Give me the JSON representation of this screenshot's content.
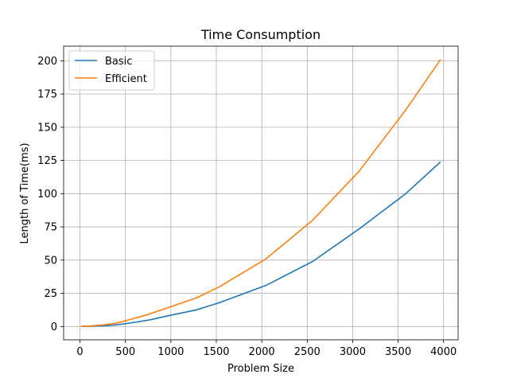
{
  "chart_data": {
    "type": "line",
    "title": "Time Consumption",
    "xlabel": "Problem Size",
    "ylabel": "Length of Time(ms)",
    "xlim": [
      -180,
      4160
    ],
    "ylim": [
      -10,
      211
    ],
    "xticks": [
      0,
      500,
      1000,
      1500,
      2000,
      2500,
      3000,
      3500,
      4000
    ],
    "yticks": [
      0,
      25,
      50,
      75,
      100,
      125,
      150,
      175,
      200
    ],
    "grid": true,
    "legend_position": "top-left",
    "series": [
      {
        "name": "Basic",
        "color": "#1f77b4",
        "x": [
          16,
          64,
          128,
          256,
          384,
          512,
          768,
          1024,
          1280,
          1536,
          2048,
          2560,
          3072,
          3584,
          3968
        ],
        "y": [
          0.1,
          0.2,
          0.3,
          0.6,
          1.2,
          2.2,
          5.0,
          8.9,
          12.5,
          18.0,
          31.0,
          49.0,
          73.5,
          100.0,
          124.0
        ]
      },
      {
        "name": "Efficient",
        "color": "#ff7f0e",
        "x": [
          16,
          64,
          128,
          256,
          384,
          512,
          768,
          1024,
          1280,
          1536,
          2048,
          2560,
          3072,
          3584,
          3968
        ],
        "y": [
          0.2,
          0.3,
          0.5,
          1.2,
          2.4,
          4.5,
          9.5,
          15.5,
          21.5,
          30.0,
          51.0,
          80.0,
          117.0,
          163.0,
          201.0
        ]
      }
    ]
  }
}
